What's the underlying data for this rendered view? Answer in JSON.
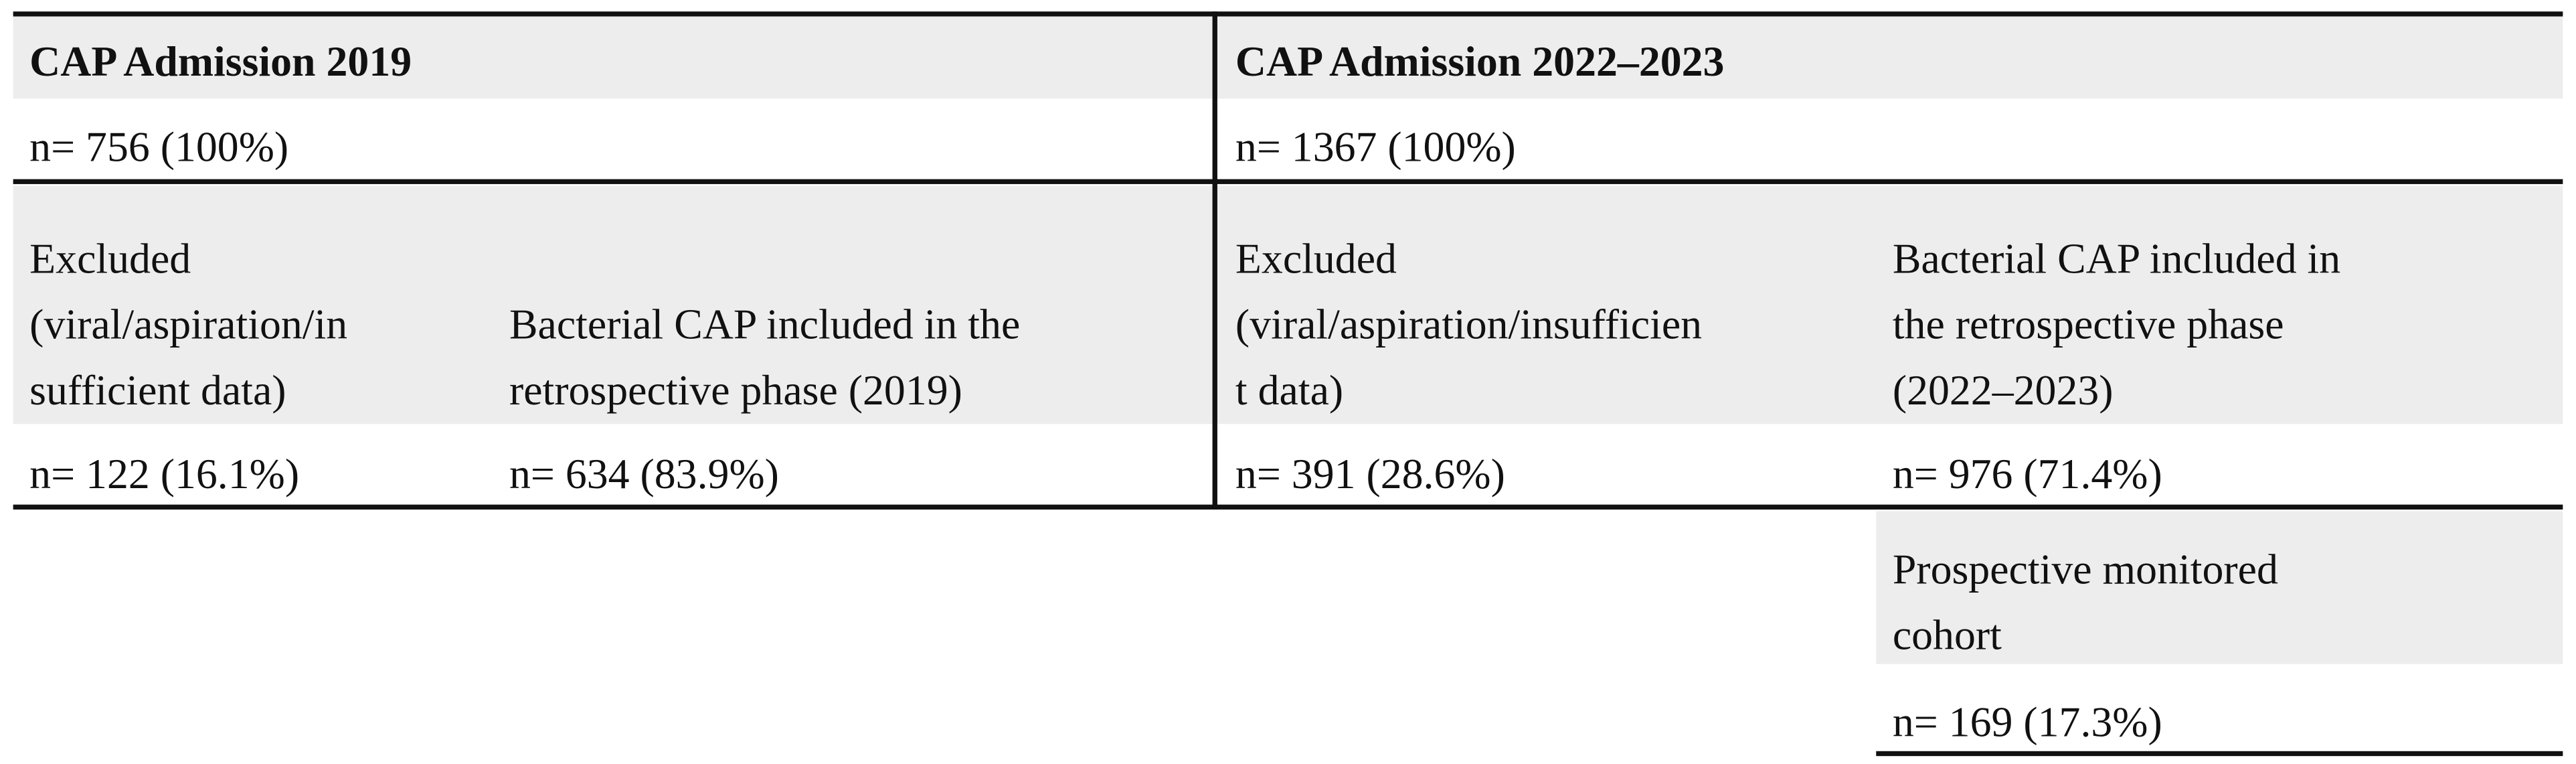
{
  "header": {
    "left": "CAP Admission 2019",
    "right": "CAP Admission 2022–2023"
  },
  "totals": {
    "left": "n= 756 (100%)",
    "right": "n= 1367 (100%)"
  },
  "groups": [
    {
      "lines": [
        "Excluded",
        "(viral/aspiration/in",
        "sufficient data)"
      ],
      "count": "n= 122 (16.1%)"
    },
    {
      "lines": [
        "Bacterial CAP included in the",
        "retrospective phase (2019)"
      ],
      "count": "n= 634 (83.9%)"
    },
    {
      "lines": [
        "Excluded",
        "(viral/aspiration/insufficien",
        "t data)"
      ],
      "count": "n= 391 (28.6%)"
    },
    {
      "lines": [
        "Bacterial CAP included in",
        "the retrospective phase",
        "(2022–2023)"
      ],
      "count": "n= 976 (71.4%)"
    }
  ],
  "prospective": {
    "lines": [
      "Prospective monitored",
      "cohort"
    ],
    "count": "n= 169 (17.3%)"
  }
}
